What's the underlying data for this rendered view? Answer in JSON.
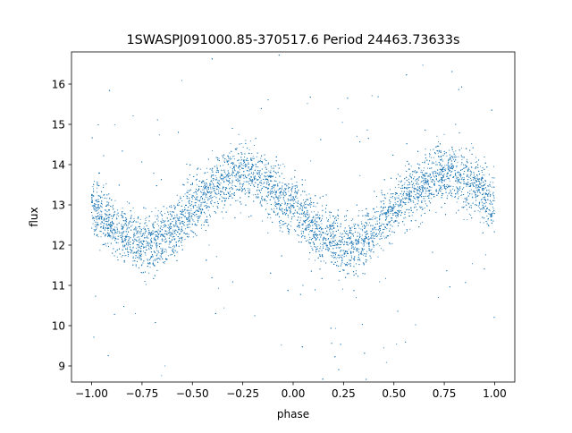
{
  "chart_data": {
    "type": "scatter",
    "title": "1SWASPJ091000.85-370517.6 Period 24463.73633s",
    "xlabel": "phase",
    "ylabel": "flux",
    "xlim": [
      -1.1,
      1.1
    ],
    "ylim": [
      8.6,
      16.8
    ],
    "xticks": [
      -1.0,
      -0.75,
      -0.5,
      -0.25,
      0.0,
      0.25,
      0.5,
      0.75,
      1.0
    ],
    "xtick_labels": [
      "−1.00",
      "−0.75",
      "−0.50",
      "−0.25",
      "0.00",
      "0.25",
      "0.50",
      "0.75",
      "1.00"
    ],
    "yticks": [
      9,
      10,
      11,
      12,
      13,
      14,
      15,
      16
    ],
    "ytick_labels": [
      "9",
      "10",
      "11",
      "12",
      "13",
      "14",
      "15",
      "16"
    ],
    "grid": false,
    "marker_color": "#1f77b4",
    "series": [
      {
        "trend_x": [
          -1.0,
          -0.9,
          -0.8,
          -0.75,
          -0.7,
          -0.6,
          -0.5,
          -0.4,
          -0.3,
          -0.25,
          -0.2,
          -0.1,
          0.0,
          0.1,
          0.2,
          0.25,
          0.3,
          0.4,
          0.5,
          0.6,
          0.7,
          0.75,
          0.8,
          0.9,
          1.0
        ],
        "trend_y": [
          12.95,
          12.5,
          12.15,
          12.05,
          12.05,
          12.35,
          12.9,
          13.4,
          13.75,
          13.8,
          13.75,
          13.4,
          12.9,
          12.4,
          12.1,
          12.0,
          12.05,
          12.35,
          12.9,
          13.35,
          13.7,
          13.8,
          13.75,
          13.5,
          12.95
        ],
        "scatter_sd": 0.35,
        "approx_point_count": 11000
      }
    ]
  }
}
